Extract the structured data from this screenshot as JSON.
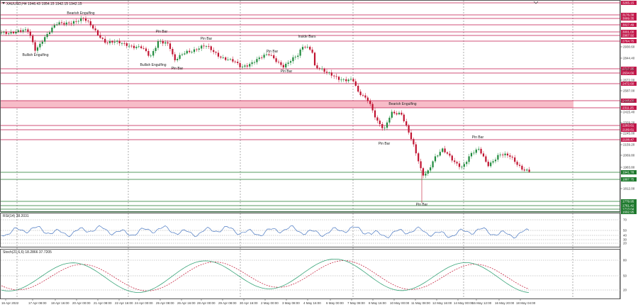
{
  "header": {
    "symbol_line": "XAUUSD,H4  1946.43 1954.15 1942.15 1942.15",
    "ind_icon": "dropdown-triangle-icon"
  },
  "colors": {
    "bull": "#1e8a3c",
    "bear": "#c0112f",
    "res": "#c2184b",
    "sup": "#1f7a2e",
    "zone": "#f7bcc8",
    "rsi": "#4a78c2",
    "stoch_main": "#3aa57a",
    "stoch_signal": "#c0112f"
  },
  "price_axis": {
    "tick_labels": [
      "2930.60",
      "2844.40",
      "2758.20",
      "2672.00",
      "2587.00",
      "2501.00",
      "2415.40",
      "2329.20",
      "2245.00",
      "2159.20",
      "2069.80",
      "1983.80",
      "1812.00"
    ],
    "resistance": [
      {
        "label": "3265.15"
      },
      {
        "label": "3176.38"
      },
      {
        "label": "3089.35"
      },
      {
        "label": "3027.49"
      },
      {
        "label": "3001.00"
      },
      {
        "label": "2967.92"
      },
      {
        "label": "2764.75"
      },
      {
        "label": "2717.35"
      },
      {
        "label": "2634.66"
      },
      {
        "label": "2472.60"
      },
      {
        "label": "2448.00"
      },
      {
        "label": "2311.25"
      },
      {
        "label": "2283.61"
      },
      {
        "label": "2189.61"
      },
      {
        "label": "2108.47"
      }
    ],
    "support": [
      {
        "label": "1941.78"
      },
      {
        "label": "1887.75"
      },
      {
        "label": "1779.95"
      },
      {
        "label": "1761.42"
      },
      {
        "label": "1713.04"
      },
      {
        "label": "1692.95"
      }
    ]
  },
  "patterns": [
    {
      "text": "Bearish Engulfing"
    },
    {
      "text": "Bullish Engulfing"
    },
    {
      "text": "Pin Bar"
    },
    {
      "text": "Bullish Engulfing"
    },
    {
      "text": "Pin Bar"
    },
    {
      "text": "Pin Bar"
    },
    {
      "text": "Pin Bar"
    },
    {
      "text": "Pin Bar"
    },
    {
      "text": "Inside Bars"
    },
    {
      "text": "Bearish Engulfing"
    },
    {
      "text": "Pin Bar"
    },
    {
      "text": "Pin Bar"
    },
    {
      "text": "Pin Bar"
    }
  ],
  "rsi": {
    "title": "RSI(14) 38.2031",
    "levels": [
      "70",
      "50",
      "40",
      "30",
      "20"
    ]
  },
  "stoch": {
    "title": "Stoch(21,6,6) 18.2866 37.7205",
    "levels": [
      "80",
      "50",
      "20"
    ]
  },
  "time_axis": {
    "labels": [
      "16 Apr 2022",
      "17 Apr 08:00",
      "18 Apr 16:00",
      "20 Apr 00:00",
      "21 Apr 08:00",
      "22 Apr 16:00",
      "24 Apr 00:00",
      "25 Apr 08:00",
      "26 Apr 16:00",
      "28 Apr 00:00",
      "29 Apr 08:00",
      "30 Apr 16:00",
      "2 May 00:00",
      "3 May 08:00",
      "4 May 16:00",
      "6 May 00:00",
      "7 May 08:00",
      "8 May 16:00",
      "10 May 00:00",
      "11 May 08:00",
      "12 May 16:00",
      "14 May 00:00",
      "15 May 12:00",
      "16 May 20:00",
      "18 May 04:00"
    ]
  }
}
